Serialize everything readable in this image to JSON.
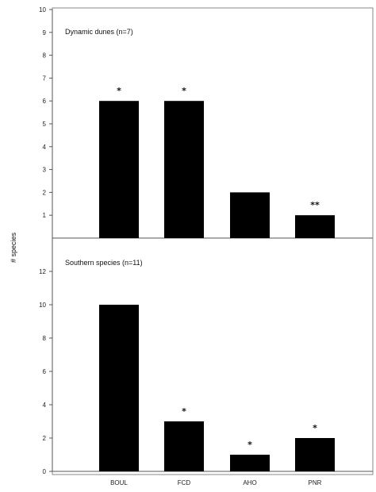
{
  "ylabel": "# species",
  "chart_data": [
    {
      "type": "bar",
      "title": "Dynamic dunes (n=7)",
      "categories": [
        "BOUL",
        "FCD",
        "AHO",
        "PNR"
      ],
      "values": [
        6,
        6,
        2,
        1
      ],
      "significance": [
        "*",
        "*",
        "",
        "**"
      ],
      "ylim": [
        0,
        10
      ],
      "yticks": [
        1,
        2,
        3,
        4,
        5,
        6,
        7,
        8,
        9,
        10
      ],
      "bar_color": "#000000"
    },
    {
      "type": "bar",
      "title": "Southern species (n=11)",
      "categories": [
        "BOUL",
        "FCD",
        "AHO",
        "PNR"
      ],
      "values": [
        10,
        3,
        1,
        2
      ],
      "significance": [
        "",
        "*",
        "*",
        "*"
      ],
      "ylim": [
        0,
        14
      ],
      "yticks": [
        0,
        2,
        4,
        6,
        8,
        10,
        12
      ],
      "bar_color": "#000000"
    }
  ]
}
